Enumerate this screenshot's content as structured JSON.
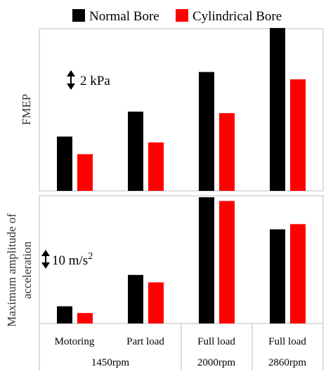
{
  "legend": {
    "items": [
      {
        "name": "Normal Bore",
        "color": "#000000"
      },
      {
        "name": "Cylindrical Bore",
        "color": "#ff0000"
      }
    ]
  },
  "chart_data": [
    {
      "type": "bar",
      "title": "",
      "xlabel": "",
      "ylabel": "FMEP",
      "ylim": [
        0,
        11
      ],
      "scale_bar": {
        "label": "2 kPa",
        "value": 2
      },
      "categories": [
        "Motoring",
        "Part load",
        "Full load",
        "Full load"
      ],
      "groups": [
        {
          "label": "1450rpm",
          "span": [
            0,
            1
          ]
        },
        {
          "label": "2000rpm",
          "span": [
            2,
            2
          ]
        },
        {
          "label": "2860rpm",
          "span": [
            3,
            3
          ]
        }
      ],
      "series": [
        {
          "name": "Normal Bore",
          "values": [
            3.7,
            5.4,
            8.1,
            11.1
          ]
        },
        {
          "name": "Cylindrical Bore",
          "values": [
            2.5,
            3.3,
            5.3,
            7.6
          ]
        }
      ]
    },
    {
      "type": "bar",
      "title": "",
      "xlabel": "",
      "ylabel": "Maximum amplitude of acceleration",
      "ylabel_lines": [
        "Maximum amplitude of",
        "acceleration"
      ],
      "ylim": [
        0,
        17
      ],
      "scale_bar": {
        "label": "10 m/s",
        "label_sup": "2",
        "value": 10
      },
      "categories": [
        "Motoring",
        "Part load",
        "Full load",
        "Full load"
      ],
      "groups": [
        {
          "label": "1450rpm",
          "span": [
            0,
            1
          ]
        },
        {
          "label": "2000rpm",
          "span": [
            2,
            2
          ]
        },
        {
          "label": "2860rpm",
          "span": [
            3,
            3
          ]
        }
      ],
      "series": [
        {
          "name": "Normal Bore",
          "values": [
            2.3,
            6.5,
            16.9,
            12.6
          ]
        },
        {
          "name": "Cylindrical Bore",
          "values": [
            1.4,
            5.5,
            16.4,
            13.3
          ]
        }
      ]
    }
  ]
}
